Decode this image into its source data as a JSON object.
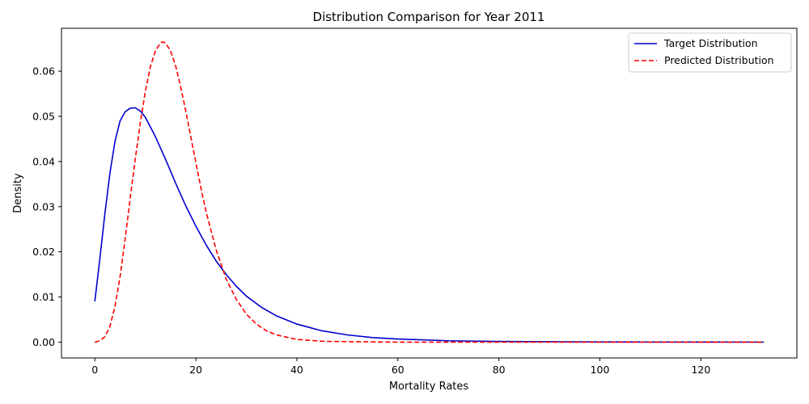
{
  "chart_data": {
    "type": "line",
    "title": "Distribution Comparison for Year 2011",
    "xlabel": "Mortality Rates",
    "ylabel": "Density",
    "xlim": [
      -6.6,
      139
    ],
    "ylim": [
      -0.0035,
      0.0695
    ],
    "xticks": [
      0,
      20,
      40,
      60,
      80,
      100,
      120
    ],
    "yticks": [
      0.0,
      0.01,
      0.02,
      0.03,
      0.04,
      0.05,
      0.06
    ],
    "xtick_labels": [
      "0",
      "20",
      "40",
      "60",
      "80",
      "100",
      "120"
    ],
    "ytick_labels": [
      "0.00",
      "0.01",
      "0.02",
      "0.03",
      "0.04",
      "0.05",
      "0.06"
    ],
    "grid": false,
    "legend_position": "top-right",
    "series": [
      {
        "name": "Target Distribution",
        "color": "#0000cc",
        "style": "solid",
        "x": [
          0,
          1,
          2,
          3,
          4,
          5,
          6,
          7,
          8,
          9,
          10,
          12,
          14,
          16,
          18,
          20,
          22,
          24,
          26,
          28,
          30,
          33,
          36,
          40,
          45,
          50,
          55,
          60,
          70,
          80,
          90,
          100,
          110,
          120,
          132.5
        ],
        "y": [
          0.009,
          0.0185,
          0.0285,
          0.0375,
          0.0445,
          0.049,
          0.051,
          0.0518,
          0.0519,
          0.0512,
          0.0498,
          0.0455,
          0.0405,
          0.0352,
          0.0302,
          0.0257,
          0.0216,
          0.018,
          0.015,
          0.0124,
          0.0102,
          0.0077,
          0.0058,
          0.004,
          0.0025,
          0.0016,
          0.001,
          0.0007,
          0.0003,
          0.00015,
          0.0001,
          5e-05,
          3e-05,
          2e-05,
          1e-05
        ]
      },
      {
        "name": "Predicted Distribution",
        "color": "#ff0000",
        "style": "dashed",
        "x": [
          0,
          1,
          2,
          3,
          4,
          5,
          6,
          7,
          8,
          9,
          10,
          11,
          12,
          13,
          13.5,
          14,
          15,
          16,
          17,
          18,
          19,
          20,
          21,
          22,
          24,
          26,
          28,
          30,
          32,
          34,
          36,
          40,
          45,
          50,
          60,
          80,
          100,
          132.5
        ],
        "y": [
          0.0,
          0.0003,
          0.0012,
          0.0035,
          0.008,
          0.0145,
          0.0228,
          0.0318,
          0.0405,
          0.0485,
          0.0555,
          0.061,
          0.0645,
          0.0663,
          0.0665,
          0.0662,
          0.0645,
          0.0612,
          0.0565,
          0.0512,
          0.0455,
          0.0398,
          0.0342,
          0.029,
          0.0205,
          0.014,
          0.0095,
          0.0062,
          0.004,
          0.0025,
          0.0016,
          0.0006,
          0.0002,
          0.0001,
          0.0,
          0.0,
          0.0,
          0.0
        ]
      }
    ]
  }
}
